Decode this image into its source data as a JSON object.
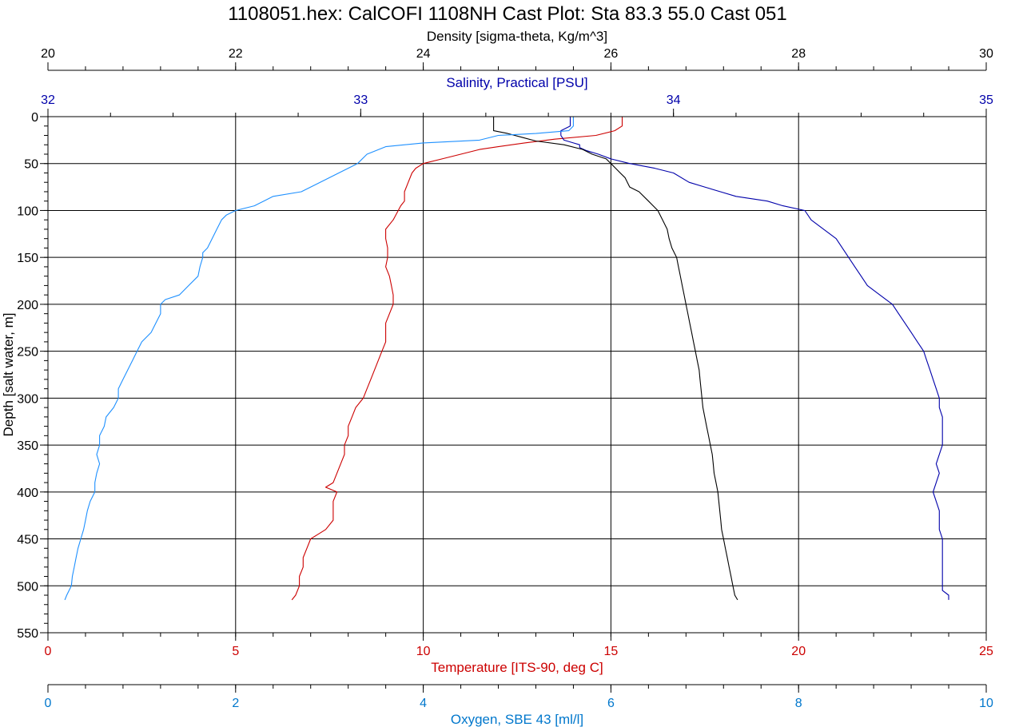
{
  "chart_data": {
    "type": "line",
    "title": "1108051.hex: CalCOFI 1108NH Cast Plot: Sta 83.3  55.0  Cast 051",
    "grid": true,
    "y_axis": {
      "label": "Depth [salt water, m]",
      "range": [
        0,
        550
      ],
      "inverted": true,
      "ticks": [
        0,
        50,
        100,
        150,
        200,
        250,
        300,
        350,
        400,
        450,
        500,
        550
      ],
      "tick_labels": [
        "0",
        "50",
        "100",
        "150",
        "200",
        "250",
        "300",
        "350",
        "400",
        "450",
        "500",
        "550"
      ],
      "color": "#000000"
    },
    "x_axes": [
      {
        "id": "density",
        "label": "Density [sigma-theta, Kg/m^3]",
        "position": "top",
        "range": [
          20,
          30
        ],
        "ticks": [
          20,
          22,
          24,
          26,
          28,
          30
        ],
        "tick_labels": [
          "20",
          "22",
          "24",
          "26",
          "28",
          "30"
        ],
        "color": "#000000"
      },
      {
        "id": "salinity",
        "label": "Salinity, Practical [PSU]",
        "position": "top-inner",
        "range": [
          32,
          35
        ],
        "ticks": [
          32,
          33,
          34,
          35
        ],
        "tick_labels": [
          "32",
          "33",
          "34",
          "35"
        ],
        "color": "#0000aa"
      },
      {
        "id": "temperature",
        "label": "Temperature [ITS-90, deg C]",
        "position": "bottom",
        "range": [
          0,
          25
        ],
        "ticks": [
          0,
          5,
          10,
          15,
          20,
          25
        ],
        "tick_labels": [
          "0",
          "5",
          "10",
          "15",
          "20",
          "25"
        ],
        "color": "#cc0000"
      },
      {
        "id": "oxygen",
        "label": "Oxygen, SBE 43 [ml/l]",
        "position": "bottom-outer",
        "range": [
          0,
          10
        ],
        "ticks": [
          0,
          2,
          4,
          6,
          8,
          10
        ],
        "tick_labels": [
          "0",
          "2",
          "4",
          "6",
          "8",
          "10"
        ],
        "color": "#0077cc"
      }
    ],
    "series": [
      {
        "axis": "temperature",
        "color": "#cc0000",
        "points": [
          [
            15.3,
            0
          ],
          [
            15.3,
            10
          ],
          [
            15.1,
            15
          ],
          [
            14.6,
            20
          ],
          [
            13.5,
            24
          ],
          [
            12.7,
            28
          ],
          [
            12.0,
            32
          ],
          [
            11.5,
            35
          ],
          [
            11.0,
            40
          ],
          [
            10.5,
            45
          ],
          [
            10.0,
            50
          ],
          [
            9.8,
            55
          ],
          [
            9.7,
            60
          ],
          [
            9.6,
            70
          ],
          [
            9.5,
            80
          ],
          [
            9.5,
            90
          ],
          [
            9.4,
            95
          ],
          [
            9.2,
            110
          ],
          [
            9.0,
            120
          ],
          [
            9.0,
            130
          ],
          [
            9.05,
            140
          ],
          [
            9.05,
            150
          ],
          [
            9.0,
            160
          ],
          [
            9.1,
            170
          ],
          [
            9.15,
            180
          ],
          [
            9.2,
            190
          ],
          [
            9.2,
            200
          ],
          [
            9.1,
            210
          ],
          [
            9.0,
            220
          ],
          [
            9.0,
            240
          ],
          [
            8.9,
            250
          ],
          [
            8.8,
            260
          ],
          [
            8.7,
            270
          ],
          [
            8.6,
            280
          ],
          [
            8.5,
            290
          ],
          [
            8.4,
            300
          ],
          [
            8.2,
            310
          ],
          [
            8.1,
            320
          ],
          [
            8.0,
            330
          ],
          [
            8.0,
            340
          ],
          [
            7.9,
            350
          ],
          [
            7.9,
            360
          ],
          [
            7.8,
            370
          ],
          [
            7.7,
            380
          ],
          [
            7.6,
            390
          ],
          [
            7.4,
            395
          ],
          [
            7.7,
            400
          ],
          [
            7.6,
            410
          ],
          [
            7.6,
            420
          ],
          [
            7.6,
            430
          ],
          [
            7.4,
            440
          ],
          [
            7.2,
            445
          ],
          [
            7.0,
            450
          ],
          [
            6.9,
            460
          ],
          [
            6.8,
            470
          ],
          [
            6.8,
            480
          ],
          [
            6.7,
            490
          ],
          [
            6.7,
            500
          ],
          [
            6.6,
            510
          ],
          [
            6.5,
            515
          ]
        ]
      },
      {
        "axis": "salinity",
        "color": "#0000aa",
        "points": [
          [
            33.67,
            0
          ],
          [
            33.67,
            5
          ],
          [
            33.67,
            10
          ],
          [
            33.64,
            15
          ],
          [
            33.64,
            20
          ],
          [
            33.65,
            25
          ],
          [
            33.68,
            28
          ],
          [
            33.7,
            30
          ],
          [
            33.7,
            33
          ],
          [
            33.72,
            36
          ],
          [
            33.76,
            40
          ],
          [
            33.8,
            45
          ],
          [
            33.86,
            50
          ],
          [
            33.94,
            55
          ],
          [
            34.0,
            60
          ],
          [
            34.05,
            70
          ],
          [
            34.1,
            75
          ],
          [
            34.15,
            80
          ],
          [
            34.2,
            85
          ],
          [
            34.3,
            90
          ],
          [
            34.35,
            95
          ],
          [
            34.42,
            100
          ],
          [
            34.44,
            110
          ],
          [
            34.48,
            120
          ],
          [
            34.52,
            130
          ],
          [
            34.54,
            140
          ],
          [
            34.56,
            150
          ],
          [
            34.58,
            160
          ],
          [
            34.6,
            170
          ],
          [
            34.62,
            180
          ],
          [
            34.66,
            190
          ],
          [
            34.7,
            200
          ],
          [
            34.72,
            210
          ],
          [
            34.74,
            220
          ],
          [
            34.76,
            230
          ],
          [
            34.78,
            240
          ],
          [
            34.8,
            250
          ],
          [
            34.81,
            260
          ],
          [
            34.82,
            270
          ],
          [
            34.83,
            280
          ],
          [
            34.84,
            290
          ],
          [
            34.85,
            300
          ],
          [
            34.85,
            310
          ],
          [
            34.86,
            320
          ],
          [
            34.86,
            330
          ],
          [
            34.86,
            340
          ],
          [
            34.86,
            350
          ],
          [
            34.85,
            360
          ],
          [
            34.84,
            370
          ],
          [
            34.85,
            380
          ],
          [
            34.84,
            390
          ],
          [
            34.83,
            400
          ],
          [
            34.84,
            410
          ],
          [
            34.85,
            420
          ],
          [
            34.85,
            430
          ],
          [
            34.85,
            440
          ],
          [
            34.86,
            450
          ],
          [
            34.86,
            460
          ],
          [
            34.86,
            470
          ],
          [
            34.86,
            480
          ],
          [
            34.86,
            490
          ],
          [
            34.86,
            500
          ],
          [
            34.86,
            505
          ],
          [
            34.88,
            510
          ],
          [
            34.88,
            515
          ]
        ]
      },
      {
        "axis": "density",
        "color": "#000000",
        "points": [
          [
            24.75,
            0
          ],
          [
            24.75,
            10
          ],
          [
            24.75,
            15
          ],
          [
            24.9,
            18
          ],
          [
            25.05,
            22
          ],
          [
            25.2,
            26
          ],
          [
            25.5,
            30
          ],
          [
            25.7,
            35
          ],
          [
            25.8,
            40
          ],
          [
            25.95,
            45
          ],
          [
            26.0,
            50
          ],
          [
            26.05,
            55
          ],
          [
            26.1,
            60
          ],
          [
            26.15,
            65
          ],
          [
            26.2,
            75
          ],
          [
            26.3,
            80
          ],
          [
            26.4,
            90
          ],
          [
            26.5,
            100
          ],
          [
            26.55,
            110
          ],
          [
            26.6,
            120
          ],
          [
            26.62,
            130
          ],
          [
            26.65,
            140
          ],
          [
            26.7,
            150
          ],
          [
            26.72,
            160
          ],
          [
            26.74,
            170
          ],
          [
            26.76,
            180
          ],
          [
            26.78,
            190
          ],
          [
            26.8,
            200
          ],
          [
            26.82,
            210
          ],
          [
            26.84,
            220
          ],
          [
            26.86,
            230
          ],
          [
            26.88,
            240
          ],
          [
            26.9,
            250
          ],
          [
            26.92,
            260
          ],
          [
            26.94,
            270
          ],
          [
            26.95,
            280
          ],
          [
            26.96,
            290
          ],
          [
            26.97,
            300
          ],
          [
            26.98,
            310
          ],
          [
            27.0,
            320
          ],
          [
            27.02,
            330
          ],
          [
            27.04,
            340
          ],
          [
            27.06,
            350
          ],
          [
            27.08,
            360
          ],
          [
            27.09,
            370
          ],
          [
            27.1,
            380
          ],
          [
            27.12,
            390
          ],
          [
            27.14,
            400
          ],
          [
            27.15,
            410
          ],
          [
            27.16,
            420
          ],
          [
            27.17,
            430
          ],
          [
            27.18,
            440
          ],
          [
            27.2,
            450
          ],
          [
            27.22,
            460
          ],
          [
            27.24,
            470
          ],
          [
            27.26,
            480
          ],
          [
            27.28,
            490
          ],
          [
            27.3,
            500
          ],
          [
            27.32,
            510
          ],
          [
            27.35,
            515
          ]
        ]
      },
      {
        "axis": "oxygen",
        "color": "#1e90ff",
        "points": [
          [
            5.6,
            0
          ],
          [
            5.6,
            10
          ],
          [
            5.55,
            15
          ],
          [
            5.2,
            18
          ],
          [
            4.8,
            20
          ],
          [
            4.6,
            25
          ],
          [
            4.0,
            28
          ],
          [
            3.6,
            32
          ],
          [
            3.4,
            40
          ],
          [
            3.3,
            50
          ],
          [
            3.1,
            60
          ],
          [
            2.9,
            70
          ],
          [
            2.7,
            80
          ],
          [
            2.4,
            85
          ],
          [
            2.3,
            90
          ],
          [
            2.2,
            95
          ],
          [
            2.0,
            100
          ],
          [
            1.9,
            105
          ],
          [
            1.85,
            110
          ],
          [
            1.8,
            120
          ],
          [
            1.75,
            130
          ],
          [
            1.7,
            140
          ],
          [
            1.65,
            145
          ],
          [
            1.65,
            150
          ],
          [
            1.62,
            160
          ],
          [
            1.6,
            170
          ],
          [
            1.5,
            180
          ],
          [
            1.4,
            190
          ],
          [
            1.25,
            195
          ],
          [
            1.2,
            200
          ],
          [
            1.2,
            210
          ],
          [
            1.15,
            220
          ],
          [
            1.1,
            230
          ],
          [
            1.0,
            240
          ],
          [
            0.95,
            250
          ],
          [
            0.9,
            260
          ],
          [
            0.85,
            270
          ],
          [
            0.8,
            280
          ],
          [
            0.75,
            290
          ],
          [
            0.75,
            300
          ],
          [
            0.7,
            310
          ],
          [
            0.62,
            320
          ],
          [
            0.6,
            330
          ],
          [
            0.55,
            340
          ],
          [
            0.55,
            350
          ],
          [
            0.52,
            360
          ],
          [
            0.55,
            370
          ],
          [
            0.52,
            380
          ],
          [
            0.5,
            390
          ],
          [
            0.5,
            400
          ],
          [
            0.45,
            410
          ],
          [
            0.42,
            420
          ],
          [
            0.4,
            430
          ],
          [
            0.38,
            440
          ],
          [
            0.35,
            450
          ],
          [
            0.32,
            460
          ],
          [
            0.3,
            470
          ],
          [
            0.28,
            480
          ],
          [
            0.26,
            490
          ],
          [
            0.25,
            500
          ],
          [
            0.2,
            510
          ],
          [
            0.18,
            515
          ]
        ]
      }
    ]
  }
}
